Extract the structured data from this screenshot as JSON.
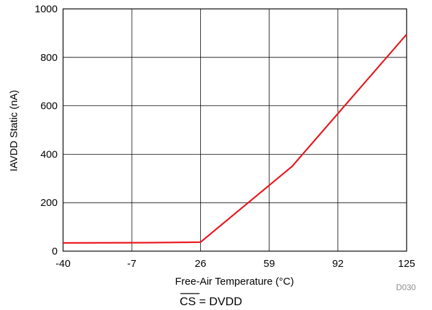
{
  "chart_data": {
    "type": "line",
    "xlabel": "Free-Air Temperature (°C)",
    "ylabel": "IAVDD Static (nA)",
    "xlim": [
      -40,
      125
    ],
    "ylim": [
      0,
      1000
    ],
    "x_ticks": [
      "-40",
      "-7",
      "26",
      "59",
      "92",
      "125"
    ],
    "y_ticks": [
      "0",
      "200",
      "400",
      "600",
      "800",
      "1000"
    ],
    "grid": true,
    "series": [
      {
        "color": "#e8151b",
        "x": [
          -40,
          0,
          26,
          70,
          125
        ],
        "y": [
          34,
          35,
          37,
          350,
          895
        ]
      }
    ],
    "figure_code": "D030",
    "condition": {
      "signal": "CS",
      "rest": " = DVDD"
    }
  }
}
